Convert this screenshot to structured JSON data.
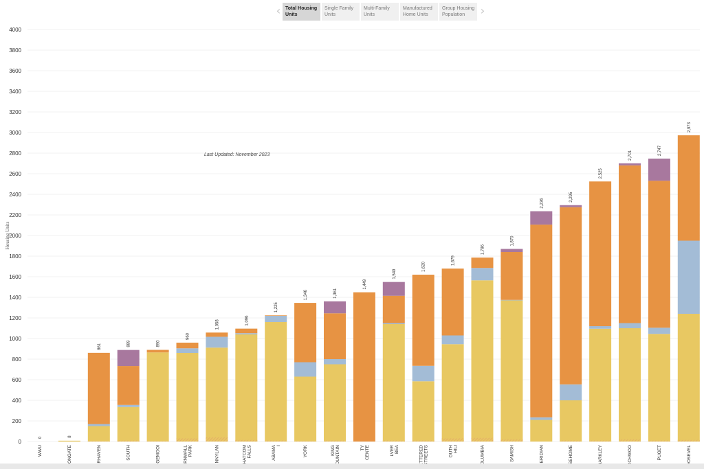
{
  "tabs": {
    "items": [
      "Total Housing Units",
      "Single Family Units",
      "Multi-Family Units",
      "Manufactured Home Units",
      "Group Housing Population"
    ],
    "active_index": 0,
    "prev_glyph": "‹",
    "next_glyph": "›"
  },
  "annotation": "Last Updated: November 2023",
  "chart_data": {
    "type": "bar",
    "stacked": true,
    "ylabel": "Housing Units",
    "ylim": [
      0,
      4000
    ],
    "yticks": [
      0,
      200,
      400,
      600,
      800,
      1000,
      1200,
      1400,
      1600,
      1800,
      2000,
      2200,
      2400,
      2600,
      2800,
      3000,
      3200,
      3400,
      3600,
      3800,
      4000
    ],
    "grid": true,
    "categories": [
      "WWU",
      "IONGATE",
      "IRHAVEN",
      "SOUTH",
      "IGEMOOI",
      "ORNWALL PARK",
      "INNYLAN",
      "HATCOM FALLS",
      "ABAMA I",
      "YORK",
      "KING OUNTAIN",
      "TY CENTE",
      "LVER BEA",
      "ETTERED STREETS",
      "OUTH HILI",
      "OLUMBIA",
      "SAMISH",
      "IERIDIAN",
      "SEHOME",
      "BARKLEY",
      "RCHWOO",
      "PUGET",
      "OOSEVEL"
    ],
    "totals": [
      0,
      8,
      861,
      889,
      890,
      960,
      1058,
      1096,
      1225,
      1346,
      1361,
      1449,
      1549,
      1620,
      1679,
      1786,
      1870,
      2236,
      2295,
      2525,
      2701,
      2747,
      2973
    ],
    "total_labels": [
      "0",
      "8",
      "861",
      "889",
      "890",
      "960",
      "1,058",
      "1,096",
      "1,225",
      "1,346",
      "1,361",
      "1,449",
      "1,549",
      "1,620",
      "1,679",
      "1,786",
      "1,870",
      "2,236",
      "2,295",
      "2,525",
      "2,701",
      "2,747",
      "2,973"
    ],
    "series": [
      {
        "color": "#e8c862",
        "values": [
          0,
          8,
          150,
          335,
          865,
          860,
          912,
          1040,
          1160,
          630,
          750,
          0,
          1140,
          585,
          945,
          1565,
          1370,
          210,
          400,
          1095,
          1100,
          1045,
          1240
        ]
      },
      {
        "color": "#a3bcd6",
        "values": [
          0,
          0,
          20,
          20,
          0,
          45,
          105,
          12,
          60,
          140,
          50,
          0,
          10,
          150,
          85,
          120,
          5,
          25,
          155,
          25,
          50,
          60,
          710
        ]
      },
      {
        "color": "#e79343",
        "values": [
          0,
          0,
          691,
          378,
          25,
          55,
          41,
          44,
          5,
          576,
          445,
          1449,
          265,
          885,
          649,
          101,
          465,
          1871,
          1720,
          1405,
          1531,
          1427,
          1023
        ]
      },
      {
        "color": "#a8789e",
        "values": [
          0,
          0,
          0,
          156,
          0,
          0,
          0,
          0,
          0,
          0,
          116,
          0,
          134,
          0,
          0,
          0,
          30,
          130,
          20,
          0,
          20,
          215,
          0
        ]
      }
    ],
    "hatched_base": [
      0,
      0,
      5,
      10,
      5,
      30,
      40,
      15,
      10,
      5,
      10,
      0,
      10,
      10,
      30,
      35,
      20,
      0,
      10,
      10,
      20,
      10,
      15
    ]
  }
}
